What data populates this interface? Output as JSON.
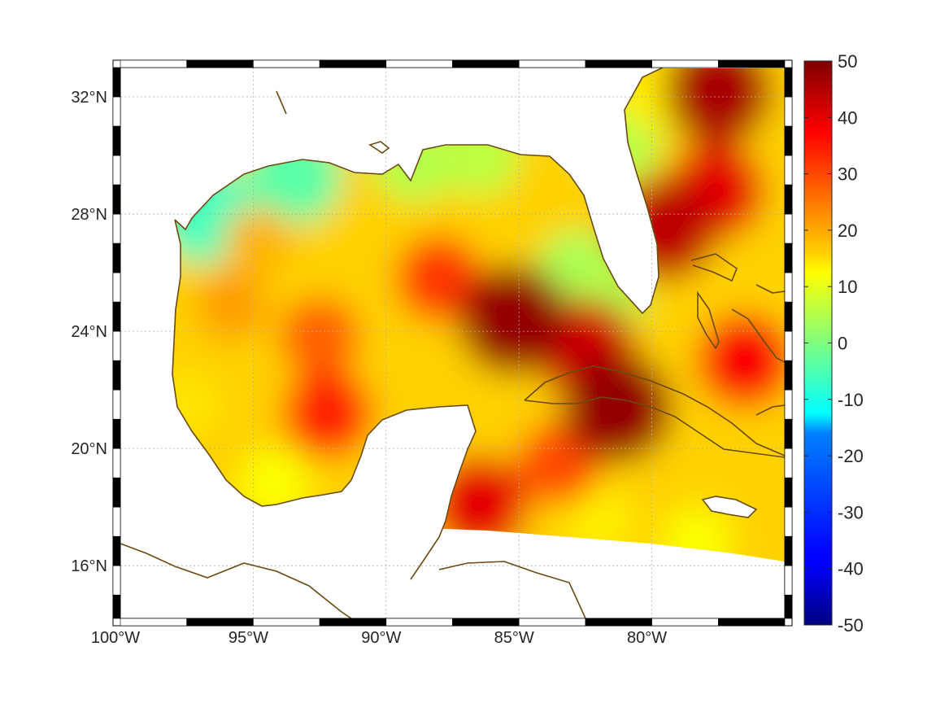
{
  "map": {
    "title": "",
    "lon_range": [
      -100,
      -75
    ],
    "lat_range": [
      14.2,
      33
    ],
    "grid": true,
    "coastline_color": "#6b4a12",
    "land_color": "#ffffff",
    "frame_style": "alternating black/white border",
    "x_ticks": [
      {
        "value": -100,
        "label": "100°W"
      },
      {
        "value": -95,
        "label": "95°W"
      },
      {
        "value": -90,
        "label": "90°W"
      },
      {
        "value": -85,
        "label": "85°W"
      },
      {
        "value": -80,
        "label": "80°W"
      }
    ],
    "y_ticks": [
      {
        "value": 16,
        "label": "16°N"
      },
      {
        "value": 20,
        "label": "20°N"
      },
      {
        "value": 24,
        "label": "24°N"
      },
      {
        "value": 28,
        "label": "28°N"
      },
      {
        "value": 32,
        "label": "32°N"
      }
    ]
  },
  "chart_data": {
    "type": "heatmap",
    "title": "",
    "xlabel": "",
    "ylabel": "",
    "colormap": "jet",
    "clim": [
      -50,
      50
    ],
    "colorbar_placement": "right",
    "colorbar_ticks": [
      {
        "value": 50,
        "label": "50"
      },
      {
        "value": 40,
        "label": "40"
      },
      {
        "value": 30,
        "label": "30"
      },
      {
        "value": 20,
        "label": "20"
      },
      {
        "value": 10,
        "label": "10"
      },
      {
        "value": 0,
        "label": "0"
      },
      {
        "value": -10,
        "label": "-10"
      },
      {
        "value": -20,
        "label": "-20"
      },
      {
        "value": -30,
        "label": "-30"
      },
      {
        "value": -40,
        "label": "-40"
      },
      {
        "value": -50,
        "label": "-50"
      }
    ],
    "features": [
      {
        "lon": -85.2,
        "lat": 24.4,
        "value": 48
      },
      {
        "lon": -81.3,
        "lat": 21.4,
        "value": 48
      },
      {
        "lon": -77.5,
        "lat": 32.2,
        "value": 46
      },
      {
        "lon": -77.6,
        "lat": 28.8,
        "value": 40
      },
      {
        "lon": -79.5,
        "lat": 27.5,
        "value": 44
      },
      {
        "lon": -82.5,
        "lat": 23.4,
        "value": 42
      },
      {
        "lon": -92.2,
        "lat": 21.2,
        "value": 34
      },
      {
        "lon": -86.5,
        "lat": 18.1,
        "value": 40
      },
      {
        "lon": -92.5,
        "lat": 23.8,
        "value": 28
      },
      {
        "lon": -88.0,
        "lat": 25.8,
        "value": 32
      },
      {
        "lon": -95.8,
        "lat": 24.9,
        "value": 22
      },
      {
        "lon": -94.8,
        "lat": 27.1,
        "value": 20
      },
      {
        "lon": -90.0,
        "lat": 27.6,
        "value": 17
      },
      {
        "lon": -93.5,
        "lat": 29.3,
        "value": -4
      },
      {
        "lon": -96.8,
        "lat": 28.0,
        "value": -6
      },
      {
        "lon": -97.5,
        "lat": 21.5,
        "value": 15
      },
      {
        "lon": -94.2,
        "lat": 18.8,
        "value": 12
      },
      {
        "lon": -89.0,
        "lat": 29.8,
        "value": 5
      },
      {
        "lon": -86.5,
        "lat": 30.0,
        "value": 6
      },
      {
        "lon": -82.8,
        "lat": 26.0,
        "value": 4
      },
      {
        "lon": -81.8,
        "lat": 25.0,
        "value": 5
      },
      {
        "lon": -81.2,
        "lat": 30.5,
        "value": 5
      },
      {
        "lon": -80.0,
        "lat": 32.0,
        "value": 14
      },
      {
        "lon": -78.3,
        "lat": 16.8,
        "value": 12
      },
      {
        "lon": -82.0,
        "lat": 17.5,
        "value": 14
      },
      {
        "lon": -86.0,
        "lat": 16.8,
        "value": 18
      },
      {
        "lon": -83.5,
        "lat": 19.5,
        "value": 30
      },
      {
        "lon": -76.5,
        "lat": 23.0,
        "value": 38
      }
    ]
  }
}
